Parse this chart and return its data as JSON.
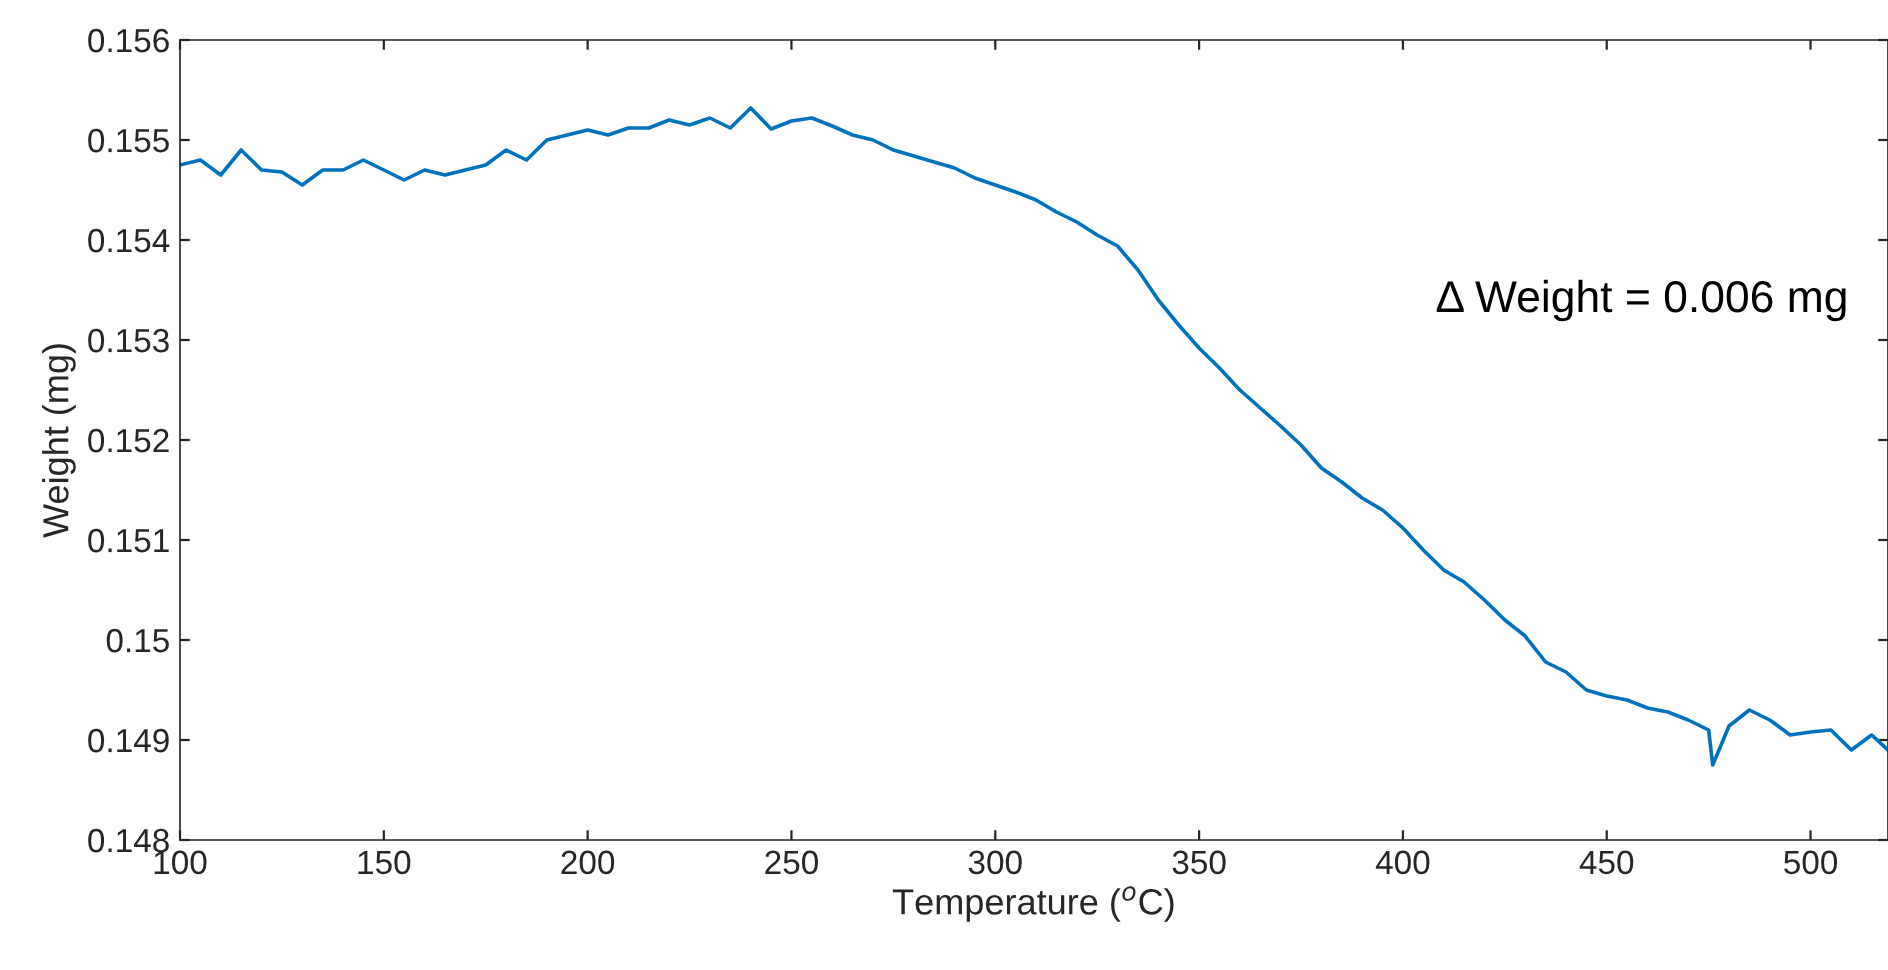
{
  "chart_data": {
    "type": "line",
    "xlabel": "Temperature ($^{o}$C)",
    "ylabel": "Weight (mg)",
    "annotations": [
      "Δ Weight = 0.006 mg"
    ],
    "xlim": [
      100,
      519
    ],
    "xticks": [
      100,
      150,
      200,
      250,
      300,
      350,
      400,
      450,
      500
    ],
    "ylim": [
      0.148,
      0.156
    ],
    "yticks": [
      {
        "value": 0.148,
        "label": "0.148"
      },
      {
        "value": 0.149,
        "label": "0.149"
      },
      {
        "value": 0.15,
        "label": "0.15"
      },
      {
        "value": 0.151,
        "label": "0.151"
      },
      {
        "value": 0.152,
        "label": "0.152"
      },
      {
        "value": 0.153,
        "label": "0.153"
      },
      {
        "value": 0.154,
        "label": "0.154"
      },
      {
        "value": 0.155,
        "label": "0.155"
      },
      {
        "value": 0.156,
        "label": "0.156"
      }
    ],
    "grid": false,
    "legend": false,
    "marker": "none",
    "line_style": "solid",
    "series": [
      {
        "color": "#0072bd",
        "x": [
          100,
          105,
          110,
          115,
          120,
          125,
          130,
          135,
          140,
          145,
          150,
          155,
          160,
          165,
          170,
          175,
          180,
          185,
          190,
          195,
          200,
          205,
          210,
          215,
          220,
          225,
          230,
          235,
          240,
          245,
          250,
          255,
          260,
          265,
          270,
          275,
          280,
          285,
          290,
          295,
          300,
          305,
          310,
          315,
          320,
          325,
          330,
          335,
          340,
          345,
          350,
          355,
          360,
          365,
          370,
          375,
          380,
          385,
          390,
          395,
          400,
          405,
          410,
          415,
          420,
          425,
          430,
          435,
          440,
          445,
          450,
          455,
          460,
          465,
          470,
          475,
          476,
          480,
          485,
          490,
          495,
          500,
          505,
          510,
          515,
          519
        ],
        "values": [
          0.15475,
          0.1548,
          0.15465,
          0.1549,
          0.1547,
          0.15468,
          0.15455,
          0.1547,
          0.1547,
          0.1548,
          0.1547,
          0.1546,
          0.1547,
          0.15465,
          0.1547,
          0.15475,
          0.1549,
          0.1548,
          0.155,
          0.15505,
          0.1551,
          0.15505,
          0.15512,
          0.15512,
          0.1552,
          0.15515,
          0.15522,
          0.15512,
          0.15532,
          0.15511,
          0.15519,
          0.15522,
          0.15514,
          0.15505,
          0.155,
          0.1549,
          0.15484,
          0.15478,
          0.15472,
          0.15462,
          0.15455,
          0.15448,
          0.1544,
          0.15428,
          0.15418,
          0.15405,
          0.15394,
          0.1537,
          0.1534,
          0.15315,
          0.15292,
          0.15272,
          0.1525,
          0.15232,
          0.15214,
          0.15195,
          0.15172,
          0.15158,
          0.15142,
          0.1513,
          0.15112,
          0.1509,
          0.1507,
          0.15058,
          0.1504,
          0.1502,
          0.15004,
          0.14978,
          0.14968,
          0.1495,
          0.14944,
          0.1494,
          0.14932,
          0.14928,
          0.1492,
          0.1491,
          0.14875,
          0.14914,
          0.1493,
          0.1492,
          0.14905,
          0.14908,
          0.1491,
          0.1489,
          0.14905,
          0.1489
        ]
      }
    ]
  }
}
